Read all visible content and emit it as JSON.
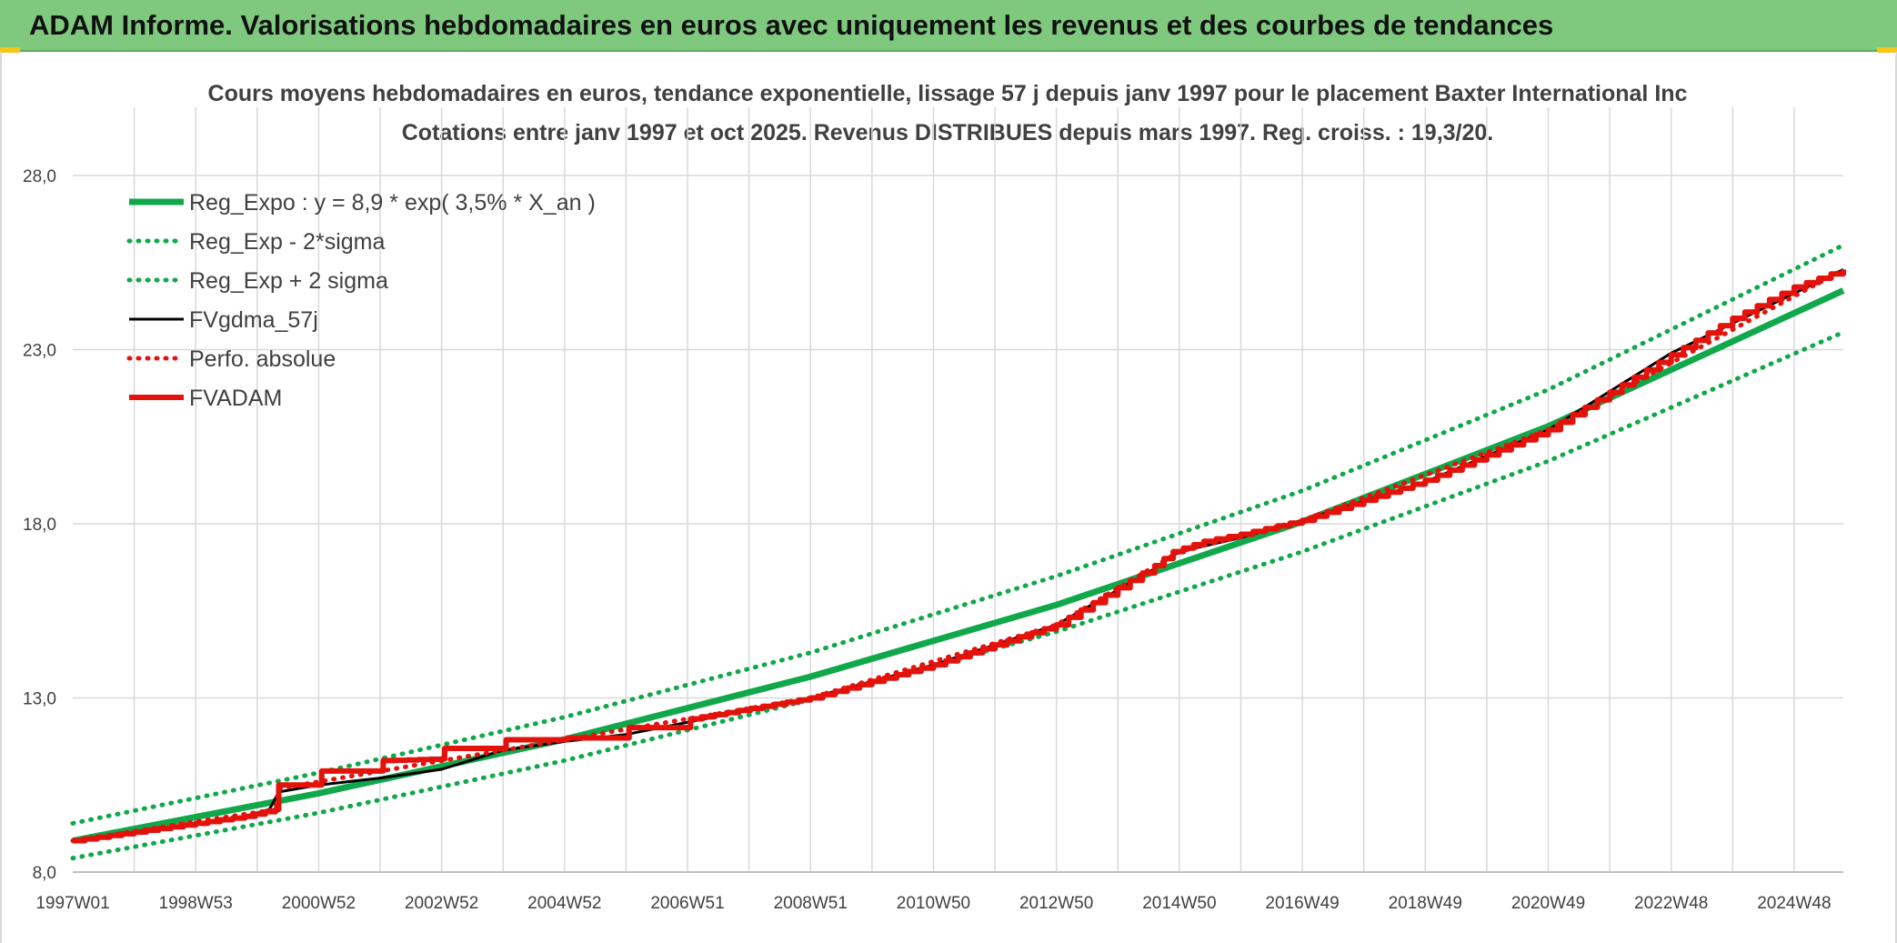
{
  "banner": {
    "title": "ADAM Informe. Valorisations hebdomadaires en euros avec uniquement les revenus et des courbes de tendances"
  },
  "colors": {
    "banner_bg": "#7fc97f",
    "reg_green": "#10a84a",
    "adam_red": "#e3120b",
    "fv_black": "#000000",
    "grid": "#d9d9d9",
    "text": "#404040"
  },
  "chart_data": {
    "type": "line",
    "title": "Cours moyens hebdomadaires en euros, tendance exponentielle, lissage 57 j depuis janv 1997 pour le placement Baxter International Inc",
    "subtitle": "Cotations entre janv 1997 et oct 2025. Revenus DISTRIBUES depuis mars 1997. Reg. croiss. : 19,3/20.",
    "xlabel": "",
    "ylabel": "",
    "ylim": [
      8,
      30
    ],
    "y_ticks": [
      "8,0",
      "13,0",
      "18,0",
      "23,0",
      "28,0"
    ],
    "y_tick_values": [
      8,
      13,
      18,
      23,
      28
    ],
    "x_range": [
      1997.0,
      2025.8
    ],
    "x_tick_labels": [
      "1997W01",
      "1998W53",
      "2000W52",
      "2002W52",
      "2004W52",
      "2006W51",
      "2008W51",
      "2010W50",
      "2012W50",
      "2014W50",
      "2016W49",
      "2018W49",
      "2020W49",
      "2022W48",
      "2024W48"
    ],
    "x_tick_values": [
      1997.0,
      1999.0,
      2001.0,
      2003.0,
      2005.0,
      2007.0,
      2009.0,
      2011.0,
      2013.0,
      2015.0,
      2017.0,
      2019.0,
      2021.0,
      2023.0,
      2025.0
    ],
    "grid": true,
    "legend_position": "top-left",
    "series": [
      {
        "name": "Reg_Expo : y = 8,9 * exp( 3,5% *  X_an )",
        "color": "#10a84a",
        "style": "solid-thick",
        "points": [
          [
            1997.0,
            8.9
          ],
          [
            2001.0,
            10.26
          ],
          [
            2005.0,
            11.81
          ],
          [
            2009.0,
            13.61
          ],
          [
            2013.0,
            15.67
          ],
          [
            2017.0,
            18.06
          ],
          [
            2021.0,
            20.8
          ],
          [
            2025.8,
            24.7
          ]
        ]
      },
      {
        "name": "Reg_Exp - 2*sigma",
        "color": "#10a84a",
        "style": "dotted",
        "points": [
          [
            1997.0,
            8.4
          ],
          [
            2001.0,
            9.7
          ],
          [
            2005.0,
            11.2
          ],
          [
            2009.0,
            12.95
          ],
          [
            2013.0,
            14.9
          ],
          [
            2017.0,
            17.2
          ],
          [
            2021.0,
            19.8
          ],
          [
            2025.8,
            23.5
          ]
        ]
      },
      {
        "name": "Reg_Exp + 2 sigma",
        "color": "#10a84a",
        "style": "dotted",
        "points": [
          [
            1997.0,
            9.4
          ],
          [
            2001.0,
            10.85
          ],
          [
            2005.0,
            12.45
          ],
          [
            2009.0,
            14.3
          ],
          [
            2013.0,
            16.5
          ],
          [
            2017.0,
            18.95
          ],
          [
            2021.0,
            21.85
          ],
          [
            2025.8,
            26.0
          ]
        ]
      },
      {
        "name": "FVgdma_57j",
        "color": "#000000",
        "style": "solid",
        "points": [
          [
            1997.0,
            8.9
          ],
          [
            1998.0,
            9.15
          ],
          [
            1999.0,
            9.4
          ],
          [
            1999.8,
            9.6
          ],
          [
            2000.2,
            9.8
          ],
          [
            2000.35,
            10.3
          ],
          [
            2001.0,
            10.5
          ],
          [
            2002.0,
            10.7
          ],
          [
            2003.0,
            10.95
          ],
          [
            2004.0,
            11.5
          ],
          [
            2005.0,
            11.75
          ],
          [
            2006.0,
            11.95
          ],
          [
            2007.0,
            12.3
          ],
          [
            2009.0,
            13.0
          ],
          [
            2011.0,
            13.95
          ],
          [
            2013.0,
            15.1
          ],
          [
            2014.5,
            16.6
          ],
          [
            2015.0,
            17.2
          ],
          [
            2016.0,
            17.6
          ],
          [
            2017.0,
            18.1
          ],
          [
            2019.0,
            19.2
          ],
          [
            2021.0,
            20.7
          ],
          [
            2023.0,
            22.9
          ],
          [
            2025.8,
            25.3
          ]
        ]
      },
      {
        "name": "Perfo. absolue",
        "color": "#e3120b",
        "style": "dotted",
        "points": [
          [
            1997.0,
            8.9
          ],
          [
            2000.3,
            9.8
          ],
          [
            2000.35,
            10.4
          ],
          [
            2005.0,
            11.8
          ],
          [
            2009.0,
            13.0
          ],
          [
            2013.0,
            15.1
          ],
          [
            2015.0,
            17.2
          ],
          [
            2017.0,
            18.1
          ],
          [
            2021.0,
            20.7
          ],
          [
            2025.8,
            25.3
          ]
        ]
      },
      {
        "name": "FVADAM",
        "color": "#e3120b",
        "style": "solid-thick-stepped",
        "points": [
          [
            1997.0,
            8.9
          ],
          [
            1998.0,
            9.15
          ],
          [
            1999.0,
            9.4
          ],
          [
            1999.8,
            9.6
          ],
          [
            2000.3,
            9.8
          ],
          [
            2000.35,
            10.5
          ],
          [
            2001.0,
            10.5
          ],
          [
            2001.05,
            10.9
          ],
          [
            2002.0,
            10.9
          ],
          [
            2002.05,
            11.2
          ],
          [
            2003.0,
            11.25
          ],
          [
            2003.05,
            11.55
          ],
          [
            2004.0,
            11.55
          ],
          [
            2004.05,
            11.8
          ],
          [
            2005.0,
            11.8
          ],
          [
            2005.05,
            11.85
          ],
          [
            2006.0,
            11.85
          ],
          [
            2006.05,
            12.15
          ],
          [
            2007.0,
            12.15
          ],
          [
            2007.05,
            12.4
          ],
          [
            2009.0,
            13.0
          ],
          [
            2011.0,
            13.95
          ],
          [
            2013.0,
            15.1
          ],
          [
            2014.6,
            16.8
          ],
          [
            2014.9,
            17.2
          ],
          [
            2015.4,
            17.5
          ],
          [
            2016.0,
            17.7
          ],
          [
            2017.0,
            18.1
          ],
          [
            2019.0,
            19.25
          ],
          [
            2021.0,
            20.7
          ],
          [
            2023.0,
            22.85
          ],
          [
            2024.0,
            23.9
          ],
          [
            2025.0,
            24.8
          ],
          [
            2025.8,
            25.3
          ]
        ]
      }
    ]
  }
}
